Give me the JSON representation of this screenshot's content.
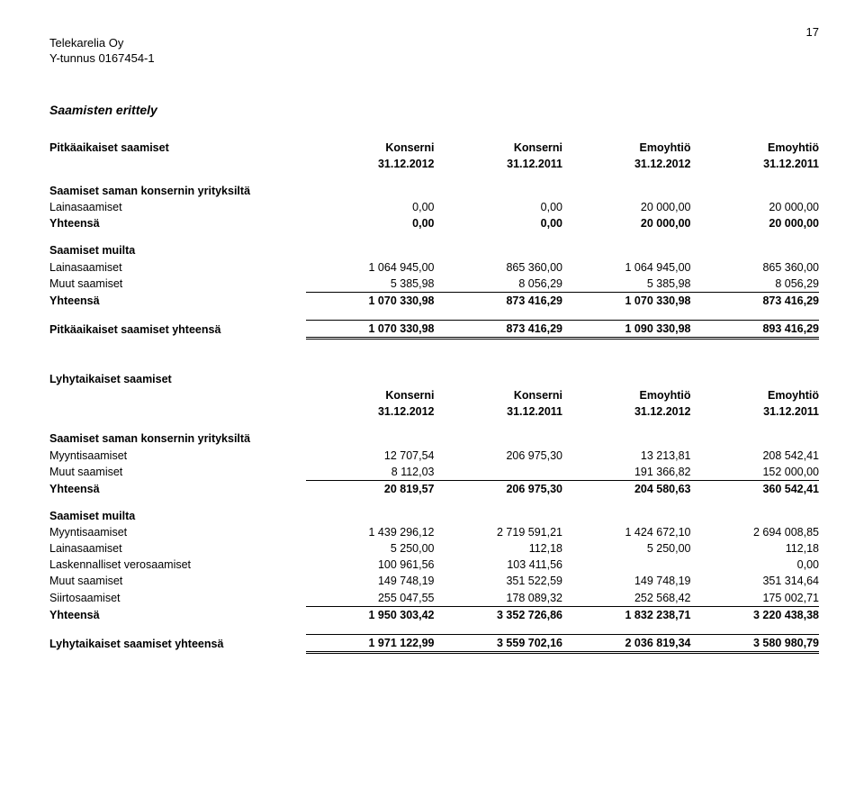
{
  "page_number": "17",
  "company_name": "Telekarelia Oy",
  "company_id": "Y-tunnus 0167454-1",
  "section1_title": "Saamisten erittely",
  "col_headers": {
    "c1a": "Konserni",
    "c1b": "31.12.2012",
    "c2a": "Konserni",
    "c2b": "31.12.2011",
    "c3a": "Emoyhtiö",
    "c3b": "31.12.2012",
    "c4a": "Emoyhtiö",
    "c4b": "31.12.2011"
  },
  "pitk_header": "Pitkäaikaiset saamiset",
  "grp1_title": "Saamiset saman konsernin yrityksiltä",
  "grp1_rows": [
    {
      "label": "Lainasaamiset",
      "v": [
        "0,00",
        "0,00",
        "20 000,00",
        "20 000,00"
      ]
    },
    {
      "label": "Yhteensä",
      "v": [
        "0,00",
        "0,00",
        "20 000,00",
        "20 000,00"
      ],
      "bold": true
    }
  ],
  "grp2_title": "Saamiset muilta",
  "grp2_rows": [
    {
      "label": "Lainasaamiset",
      "v": [
        "1 064 945,00",
        "865 360,00",
        "1 064 945,00",
        "865 360,00"
      ]
    },
    {
      "label": "Muut saamiset",
      "v": [
        "5 385,98",
        "8 056,29",
        "5 385,98",
        "8 056,29"
      ]
    },
    {
      "label": "Yhteensä",
      "v": [
        "1 070 330,98",
        "873 416,29",
        "1 070 330,98",
        "873 416,29"
      ],
      "bold": true,
      "topline": true
    }
  ],
  "pitk_total": {
    "label": "Pitkäaikaiset saamiset yhteensä",
    "v": [
      "1 070 330,98",
      "873 416,29",
      "1 090 330,98",
      "893 416,29"
    ]
  },
  "lyhy_header": "Lyhytaikaiset saamiset",
  "grp3_title": "Saamiset saman konsernin yrityksiltä",
  "grp3_rows": [
    {
      "label": "Myyntisaamiset",
      "v": [
        "12 707,54",
        "206 975,30",
        "13 213,81",
        "208 542,41"
      ]
    },
    {
      "label": "Muut saamiset",
      "v": [
        "8 112,03",
        "",
        "191 366,82",
        "152 000,00"
      ]
    },
    {
      "label": "Yhteensä",
      "v": [
        "20 819,57",
        "206 975,30",
        "204 580,63",
        "360 542,41"
      ],
      "bold": true,
      "topline": true
    }
  ],
  "grp4_title": "Saamiset muilta",
  "grp4_rows": [
    {
      "label": "Myyntisaamiset",
      "v": [
        "1 439 296,12",
        "2 719 591,21",
        "1 424 672,10",
        "2 694 008,85"
      ]
    },
    {
      "label": "Lainasaamiset",
      "v": [
        "5 250,00",
        "112,18",
        "5 250,00",
        "112,18"
      ]
    },
    {
      "label": "Laskennalliset verosaamiset",
      "v": [
        "100 961,56",
        "103 411,56",
        "",
        "0,00"
      ]
    },
    {
      "label": "Muut saamiset",
      "v": [
        "149 748,19",
        "351 522,59",
        "149 748,19",
        "351 314,64"
      ]
    },
    {
      "label": "Siirtosaamiset",
      "v": [
        "255 047,55",
        "178 089,32",
        "252 568,42",
        "175 002,71"
      ]
    },
    {
      "label": "Yhteensä",
      "v": [
        "1 950 303,42",
        "3 352 726,86",
        "1 832 238,71",
        "3 220 438,38"
      ],
      "bold": true,
      "topline": true
    }
  ],
  "lyhy_total": {
    "label": "Lyhytaikaiset saamiset yhteensä",
    "v": [
      "1 971 122,99",
      "3 559 702,16",
      "2 036 819,34",
      "3 580 980,79"
    ]
  }
}
